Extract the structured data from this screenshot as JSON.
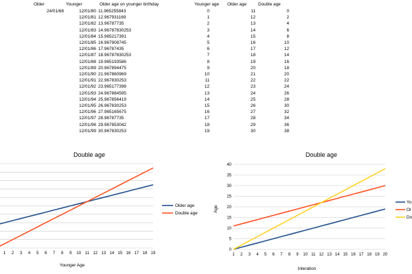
{
  "table1": {
    "headers": {
      "older": "Older",
      "younger": "Younger",
      "older_age_birthday": "Older age on younger birthday"
    },
    "older_date": "24/01/68",
    "younger_dates": [
      "12/01/80",
      "12/01/81",
      "12/01/82",
      "12/01/83",
      "12/01/84",
      "12/01/85",
      "12/01/86",
      "12/01/87",
      "12/01/88",
      "12/01/89",
      "12/01/90",
      "12/01/91",
      "12/01/92",
      "12/01/93",
      "12/01/94",
      "12/01/95",
      "12/01/96",
      "12/01/97",
      "12/01/98",
      "12/01/99"
    ],
    "older_ages": [
      "11.965255843",
      "12.967931169",
      "13.96787735",
      "14.96787830253",
      "15.965217391",
      "16.967908745",
      "17.96787435",
      "18.96787830253",
      "19.965193586",
      "20.967894475",
      "21.967860969",
      "22.967830253",
      "23.965177398",
      "24.967884595",
      "25.967856419",
      "26.967830253",
      "27.965165675",
      "28.96787735",
      "29.967853042",
      "30.967830253"
    ]
  },
  "table2": {
    "headers": {
      "younger_age": "Younger age",
      "older_age": "Older age",
      "double_age": "Double age"
    },
    "younger_ages": [
      "0",
      "1",
      "2",
      "3",
      "4",
      "5",
      "6",
      "7",
      "8",
      "9",
      "10",
      "11",
      "12",
      "13",
      "14",
      "15",
      "16",
      "17",
      "18",
      "19"
    ],
    "older_ages": [
      "11",
      "12",
      "13",
      "14",
      "15",
      "16",
      "17",
      "18",
      "19",
      "20",
      "21",
      "22",
      "23",
      "24",
      "25",
      "26",
      "27",
      "28",
      "29",
      "30"
    ],
    "double_ages": [
      "0",
      "2",
      "4",
      "6",
      "8",
      "10",
      "12",
      "14",
      "16",
      "18",
      "20",
      "22",
      "24",
      "26",
      "28",
      "30",
      "32",
      "34",
      "36",
      "38"
    ]
  },
  "chart1": {
    "title": "Double age",
    "xlabel": "Younger Age",
    "legend": [
      "Older age",
      "Double age"
    ]
  },
  "chart2": {
    "title": "Double age",
    "xlabel": "Interation",
    "ylabel": "Age",
    "legend": [
      "Yo",
      "Ol",
      "Do"
    ]
  },
  "colors": {
    "blue": "#1f4e8c",
    "orange": "#ff4f1f",
    "yellow": "#ffd21f",
    "grid": "#c8c8c8"
  },
  "chart_data": [
    {
      "type": "line",
      "title": "Double age",
      "xlabel": "Younger Age",
      "ylabel": "",
      "x": [
        0,
        1,
        2,
        3,
        4,
        5,
        6,
        7,
        8,
        9,
        10,
        11,
        12,
        13,
        14,
        15,
        16,
        17,
        18,
        19
      ],
      "series": [
        {
          "name": "Older age",
          "values": [
            11,
            12,
            13,
            14,
            15,
            16,
            17,
            18,
            19,
            20,
            21,
            22,
            23,
            24,
            25,
            26,
            27,
            28,
            29,
            30
          ]
        },
        {
          "name": "Double age",
          "values": [
            0,
            2,
            4,
            6,
            8,
            10,
            12,
            14,
            16,
            18,
            20,
            22,
            24,
            26,
            28,
            30,
            32,
            34,
            36,
            38
          ]
        }
      ],
      "xlim": [
        0,
        19
      ],
      "ylim": [
        0,
        40
      ],
      "grid": true,
      "legend_position": "right"
    },
    {
      "type": "line",
      "title": "Double age",
      "xlabel": "Interation",
      "ylabel": "Age",
      "x": [
        1,
        2,
        3,
        4,
        5,
        6,
        7,
        8,
        9,
        10,
        11,
        12,
        13,
        14,
        15,
        16,
        17,
        18,
        19,
        20
      ],
      "series": [
        {
          "name": "Yo",
          "values": [
            0,
            1,
            2,
            3,
            4,
            5,
            6,
            7,
            8,
            9,
            10,
            11,
            12,
            13,
            14,
            15,
            16,
            17,
            18,
            19
          ]
        },
        {
          "name": "Ol",
          "values": [
            11,
            12,
            13,
            14,
            15,
            16,
            17,
            18,
            19,
            20,
            21,
            22,
            23,
            24,
            25,
            26,
            27,
            28,
            29,
            30
          ]
        },
        {
          "name": "Do",
          "values": [
            0,
            2,
            4,
            6,
            8,
            10,
            12,
            14,
            16,
            18,
            20,
            22,
            24,
            26,
            28,
            30,
            32,
            34,
            36,
            38
          ]
        }
      ],
      "xlim": [
        1,
        20
      ],
      "ylim": [
        0,
        40
      ],
      "yticks": [
        0,
        5,
        10,
        15,
        20,
        25,
        30,
        35,
        40
      ],
      "grid": true,
      "legend_position": "right"
    }
  ]
}
